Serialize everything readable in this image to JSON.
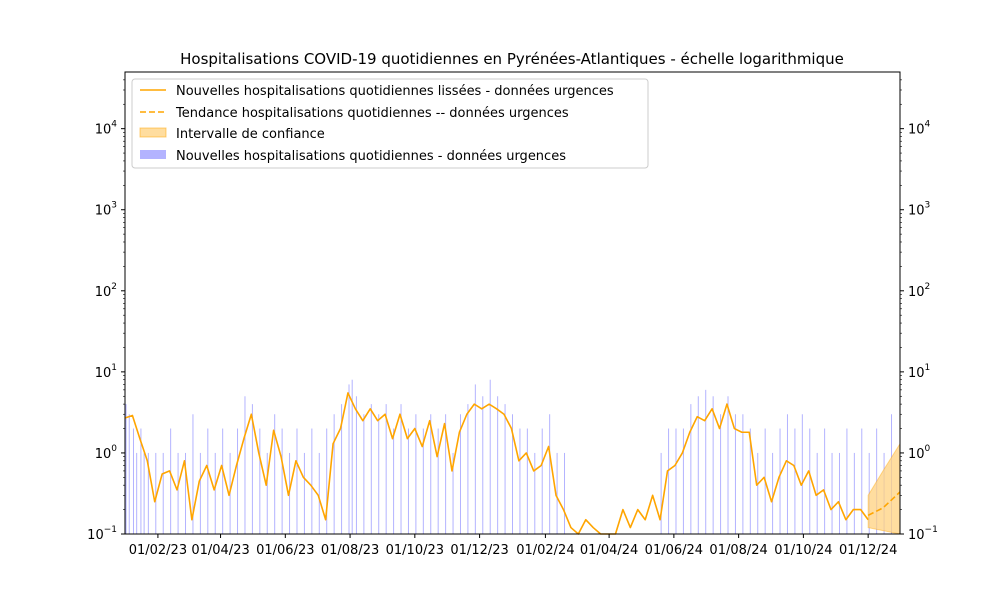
{
  "chart_data": {
    "type": "bar",
    "title": "Hospitalisations COVID-19 quotidiennes en Pyrénées-Atlantiques - échelle logarithmique",
    "xlabel": "",
    "ylabel": "",
    "y_scale": "log",
    "ylim": [
      0.1,
      50000
    ],
    "x_range": [
      "2023-01-01",
      "2024-12-31"
    ],
    "x_ticks": [
      "01/02/23",
      "01/04/23",
      "01/06/23",
      "01/08/23",
      "01/10/23",
      "01/12/23",
      "01/02/24",
      "01/04/24",
      "01/06/24",
      "01/08/24",
      "01/10/24",
      "01/12/24"
    ],
    "x_tick_dates": [
      "2023-02-01",
      "2023-04-01",
      "2023-06-01",
      "2023-08-01",
      "2023-10-01",
      "2023-12-01",
      "2024-02-01",
      "2024-04-01",
      "2024-06-01",
      "2024-08-01",
      "2024-10-01",
      "2024-12-01"
    ],
    "y_ticks": [
      {
        "value": 0.1,
        "base": "10",
        "exp": "−1"
      },
      {
        "value": 1,
        "base": "10",
        "exp": "0"
      },
      {
        "value": 10,
        "base": "10",
        "exp": "1"
      },
      {
        "value": 100,
        "base": "10",
        "exp": "2"
      },
      {
        "value": 1000,
        "base": "10",
        "exp": "3"
      },
      {
        "value": 10000,
        "base": "10",
        "exp": "4"
      }
    ],
    "legend": {
      "position": "upper-left",
      "entries": [
        {
          "label": "Nouvelles hospitalisations quotidiennes lissées - données urgences",
          "style": "line"
        },
        {
          "label": "Tendance hospitalisations quotidiennes -- données urgences",
          "style": "dashed"
        },
        {
          "label": "Intervalle de confiance",
          "style": "band"
        },
        {
          "label": "Nouvelles hospitalisations quotidiennes - données urgences",
          "style": "bar"
        }
      ]
    },
    "colors": {
      "smoothed": "#FFA500",
      "trend": "#FFA500",
      "confidence": "#FFD27F",
      "bars": "#B3B3FF"
    },
    "series": [
      {
        "name": "Nouvelles hospitalisations quotidiennes lissées - données urgences",
        "kind": "line",
        "points": [
          [
            "2023-01-01",
            2.7
          ],
          [
            "2023-01-08",
            2.9
          ],
          [
            "2023-01-15",
            1.5
          ],
          [
            "2023-01-22",
            0.8
          ],
          [
            "2023-01-29",
            0.25
          ],
          [
            "2023-02-05",
            0.55
          ],
          [
            "2023-02-12",
            0.6
          ],
          [
            "2023-02-19",
            0.35
          ],
          [
            "2023-02-26",
            0.8
          ],
          [
            "2023-03-05",
            0.15
          ],
          [
            "2023-03-12",
            0.45
          ],
          [
            "2023-03-19",
            0.7
          ],
          [
            "2023-03-26",
            0.35
          ],
          [
            "2023-04-02",
            0.7
          ],
          [
            "2023-04-09",
            0.3
          ],
          [
            "2023-04-16",
            0.7
          ],
          [
            "2023-04-23",
            1.5
          ],
          [
            "2023-04-30",
            3.0
          ],
          [
            "2023-05-07",
            1.0
          ],
          [
            "2023-05-14",
            0.4
          ],
          [
            "2023-05-21",
            1.9
          ],
          [
            "2023-05-28",
            0.9
          ],
          [
            "2023-06-04",
            0.3
          ],
          [
            "2023-06-11",
            0.8
          ],
          [
            "2023-06-18",
            0.5
          ],
          [
            "2023-06-25",
            0.4
          ],
          [
            "2023-07-02",
            0.3
          ],
          [
            "2023-07-09",
            0.15
          ],
          [
            "2023-07-16",
            1.3
          ],
          [
            "2023-07-23",
            2.0
          ],
          [
            "2023-07-30",
            5.5
          ],
          [
            "2023-08-06",
            3.5
          ],
          [
            "2023-08-13",
            2.5
          ],
          [
            "2023-08-20",
            3.5
          ],
          [
            "2023-08-27",
            2.5
          ],
          [
            "2023-09-03",
            3.0
          ],
          [
            "2023-09-10",
            1.5
          ],
          [
            "2023-09-17",
            3.0
          ],
          [
            "2023-09-24",
            1.5
          ],
          [
            "2023-10-01",
            2.0
          ],
          [
            "2023-10-08",
            1.2
          ],
          [
            "2023-10-15",
            2.5
          ],
          [
            "2023-10-22",
            0.9
          ],
          [
            "2023-10-29",
            2.3
          ],
          [
            "2023-11-05",
            0.6
          ],
          [
            "2023-11-12",
            1.8
          ],
          [
            "2023-11-19",
            3.0
          ],
          [
            "2023-11-26",
            4.0
          ],
          [
            "2023-12-03",
            3.5
          ],
          [
            "2023-12-10",
            4.0
          ],
          [
            "2023-12-17",
            3.5
          ],
          [
            "2023-12-24",
            3.0
          ],
          [
            "2023-12-31",
            2.0
          ],
          [
            "2024-01-07",
            0.8
          ],
          [
            "2024-01-14",
            1.0
          ],
          [
            "2024-01-21",
            0.6
          ],
          [
            "2024-01-28",
            0.7
          ],
          [
            "2024-02-04",
            1.2
          ],
          [
            "2024-02-11",
            0.3
          ],
          [
            "2024-02-18",
            0.2
          ],
          [
            "2024-02-25",
            0.12
          ],
          [
            "2024-03-03",
            0.1
          ],
          [
            "2024-03-10",
            0.15
          ],
          [
            "2024-03-17",
            0.12
          ],
          [
            "2024-03-24",
            0.1
          ],
          [
            "2024-03-31",
            0.1
          ],
          [
            "2024-04-07",
            0.1
          ],
          [
            "2024-04-14",
            0.2
          ],
          [
            "2024-04-21",
            0.12
          ],
          [
            "2024-04-28",
            0.2
          ],
          [
            "2024-05-05",
            0.15
          ],
          [
            "2024-05-12",
            0.3
          ],
          [
            "2024-05-19",
            0.15
          ],
          [
            "2024-05-26",
            0.6
          ],
          [
            "2024-06-02",
            0.7
          ],
          [
            "2024-06-09",
            1.0
          ],
          [
            "2024-06-16",
            1.8
          ],
          [
            "2024-06-23",
            2.8
          ],
          [
            "2024-06-30",
            2.5
          ],
          [
            "2024-07-07",
            3.5
          ],
          [
            "2024-07-14",
            2.0
          ],
          [
            "2024-07-21",
            4.0
          ],
          [
            "2024-07-28",
            2.0
          ],
          [
            "2024-08-04",
            1.8
          ],
          [
            "2024-08-11",
            1.8
          ],
          [
            "2024-08-18",
            0.4
          ],
          [
            "2024-08-25",
            0.5
          ],
          [
            "2024-09-01",
            0.25
          ],
          [
            "2024-09-08",
            0.5
          ],
          [
            "2024-09-15",
            0.8
          ],
          [
            "2024-09-22",
            0.7
          ],
          [
            "2024-09-29",
            0.4
          ],
          [
            "2024-10-06",
            0.6
          ],
          [
            "2024-10-13",
            0.3
          ],
          [
            "2024-10-20",
            0.35
          ],
          [
            "2024-10-27",
            0.2
          ],
          [
            "2024-11-03",
            0.25
          ],
          [
            "2024-11-10",
            0.15
          ],
          [
            "2024-11-17",
            0.2
          ],
          [
            "2024-11-24",
            0.2
          ],
          [
            "2024-12-01",
            0.15
          ]
        ]
      },
      {
        "name": "Tendance hospitalisations quotidiennes -- données urgences",
        "kind": "dashed",
        "points": [
          [
            "2024-12-01",
            0.17
          ],
          [
            "2024-12-15",
            0.21
          ],
          [
            "2024-12-31",
            0.33
          ]
        ]
      },
      {
        "name": "Intervalle de confiance",
        "kind": "band",
        "points": [
          [
            "2024-12-01",
            0.12,
            0.3
          ],
          [
            "2024-12-15",
            0.11,
            0.6
          ],
          [
            "2024-12-31",
            0.1,
            1.3
          ]
        ]
      },
      {
        "name": "Nouvelles hospitalisations quotidiennes - données urgences",
        "kind": "bar",
        "points": [
          [
            "2023-01-02",
            4
          ],
          [
            "2023-01-05",
            3
          ],
          [
            "2023-01-09",
            2
          ],
          [
            "2023-01-12",
            1
          ],
          [
            "2023-01-16",
            2
          ],
          [
            "2023-01-19",
            1
          ],
          [
            "2023-01-23",
            1
          ],
          [
            "2023-01-30",
            1
          ],
          [
            "2023-02-06",
            1
          ],
          [
            "2023-02-13",
            2
          ],
          [
            "2023-02-20",
            1
          ],
          [
            "2023-02-27",
            1
          ],
          [
            "2023-03-06",
            3
          ],
          [
            "2023-03-13",
            1
          ],
          [
            "2023-03-20",
            2
          ],
          [
            "2023-03-27",
            1
          ],
          [
            "2023-04-03",
            2
          ],
          [
            "2023-04-10",
            1
          ],
          [
            "2023-04-17",
            2
          ],
          [
            "2023-04-24",
            5
          ],
          [
            "2023-05-01",
            4
          ],
          [
            "2023-05-08",
            2
          ],
          [
            "2023-05-15",
            1
          ],
          [
            "2023-05-22",
            3
          ],
          [
            "2023-05-29",
            2
          ],
          [
            "2023-06-05",
            1
          ],
          [
            "2023-06-12",
            2
          ],
          [
            "2023-06-19",
            1
          ],
          [
            "2023-06-26",
            2
          ],
          [
            "2023-07-03",
            1
          ],
          [
            "2023-07-10",
            2
          ],
          [
            "2023-07-17",
            3
          ],
          [
            "2023-07-24",
            4
          ],
          [
            "2023-07-31",
            7
          ],
          [
            "2023-08-03",
            8
          ],
          [
            "2023-08-07",
            5
          ],
          [
            "2023-08-14",
            3
          ],
          [
            "2023-08-21",
            4
          ],
          [
            "2023-08-28",
            3
          ],
          [
            "2023-09-04",
            4
          ],
          [
            "2023-09-11",
            2
          ],
          [
            "2023-09-18",
            4
          ],
          [
            "2023-09-25",
            2
          ],
          [
            "2023-10-02",
            3
          ],
          [
            "2023-10-09",
            2
          ],
          [
            "2023-10-16",
            3
          ],
          [
            "2023-10-23",
            2
          ],
          [
            "2023-10-30",
            3
          ],
          [
            "2023-11-06",
            1
          ],
          [
            "2023-11-13",
            3
          ],
          [
            "2023-11-20",
            4
          ],
          [
            "2023-11-27",
            7
          ],
          [
            "2023-12-04",
            5
          ],
          [
            "2023-12-11",
            8
          ],
          [
            "2023-12-18",
            5
          ],
          [
            "2023-12-25",
            4
          ],
          [
            "2024-01-01",
            3
          ],
          [
            "2024-01-08",
            2
          ],
          [
            "2024-01-15",
            2
          ],
          [
            "2024-01-22",
            1
          ],
          [
            "2024-01-29",
            2
          ],
          [
            "2024-02-05",
            3
          ],
          [
            "2024-02-12",
            1
          ],
          [
            "2024-02-19",
            1
          ],
          [
            "2024-05-20",
            1
          ],
          [
            "2024-05-27",
            2
          ],
          [
            "2024-06-03",
            2
          ],
          [
            "2024-06-10",
            2
          ],
          [
            "2024-06-17",
            4
          ],
          [
            "2024-06-24",
            5
          ],
          [
            "2024-07-01",
            6
          ],
          [
            "2024-07-08",
            5
          ],
          [
            "2024-07-15",
            3
          ],
          [
            "2024-07-22",
            5
          ],
          [
            "2024-07-29",
            3
          ],
          [
            "2024-08-05",
            3
          ],
          [
            "2024-08-12",
            2
          ],
          [
            "2024-08-19",
            1
          ],
          [
            "2024-08-26",
            2
          ],
          [
            "2024-09-02",
            1
          ],
          [
            "2024-09-09",
            2
          ],
          [
            "2024-09-16",
            3
          ],
          [
            "2024-09-23",
            2
          ],
          [
            "2024-09-30",
            3
          ],
          [
            "2024-10-07",
            2
          ],
          [
            "2024-10-14",
            1
          ],
          [
            "2024-10-21",
            2
          ],
          [
            "2024-10-28",
            1
          ],
          [
            "2024-11-04",
            1
          ],
          [
            "2024-11-11",
            2
          ],
          [
            "2024-11-18",
            1
          ],
          [
            "2024-11-25",
            2
          ],
          [
            "2024-12-02",
            1
          ],
          [
            "2024-12-09",
            2
          ],
          [
            "2024-12-16",
            1
          ],
          [
            "2024-12-23",
            3
          ]
        ]
      }
    ]
  }
}
